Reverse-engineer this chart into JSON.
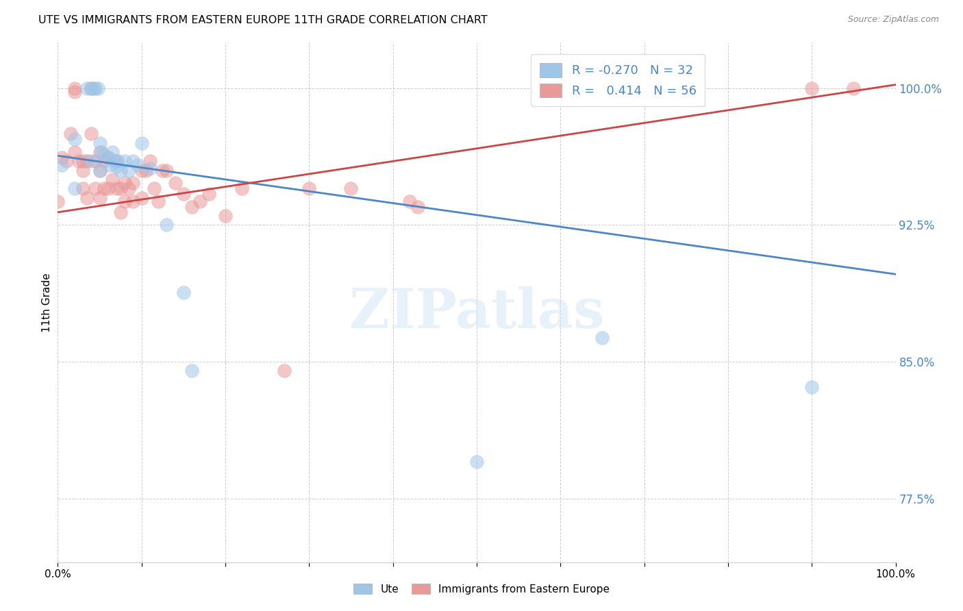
{
  "title": "UTE VS IMMIGRANTS FROM EASTERN EUROPE 11TH GRADE CORRELATION CHART",
  "source": "Source: ZipAtlas.com",
  "ylabel": "11th Grade",
  "xlim": [
    0.0,
    1.0
  ],
  "ylim": [
    0.74,
    1.025
  ],
  "ytick_positions": [
    0.775,
    0.85,
    0.925,
    1.0
  ],
  "ytick_labels": [
    "77.5%",
    "85.0%",
    "92.5%",
    "100.0%"
  ],
  "xtick_positions": [
    0.0,
    0.1,
    0.2,
    0.3,
    0.4,
    0.5,
    0.6,
    0.7,
    0.8,
    0.9,
    1.0
  ],
  "xtick_labels": [
    "0.0%",
    "",
    "",
    "",
    "",
    "",
    "",
    "",
    "",
    "",
    "100.0%"
  ],
  "blue_color": "#9fc5e8",
  "pink_color": "#ea9999",
  "blue_line_color": "#4a86c8",
  "pink_line_color": "#cc4444",
  "legend_r_blue": "-0.270",
  "legend_n_blue": "32",
  "legend_r_pink": "0.414",
  "legend_n_pink": "56",
  "watermark_text": "ZIPatlas",
  "blue_scatter_x": [
    0.005,
    0.02,
    0.035,
    0.04,
    0.043,
    0.045,
    0.048,
    0.05,
    0.052,
    0.055,
    0.06,
    0.062,
    0.065,
    0.068,
    0.07,
    0.072,
    0.075,
    0.08,
    0.085,
    0.09,
    0.095,
    0.1,
    0.11,
    0.13,
    0.15,
    0.16,
    0.02,
    0.04,
    0.05,
    0.5,
    0.65,
    0.9
  ],
  "blue_scatter_y": [
    0.958,
    0.972,
    1.0,
    1.0,
    1.0,
    1.0,
    1.0,
    0.97,
    0.965,
    0.963,
    0.962,
    0.958,
    0.965,
    0.96,
    0.957,
    0.96,
    0.955,
    0.96,
    0.955,
    0.96,
    0.958,
    0.97,
    0.956,
    0.925,
    0.888,
    0.845,
    0.945,
    0.96,
    0.955,
    0.795,
    0.863,
    0.836
  ],
  "pink_scatter_x": [
    0.0,
    0.005,
    0.01,
    0.015,
    0.02,
    0.02,
    0.02,
    0.025,
    0.03,
    0.03,
    0.03,
    0.035,
    0.035,
    0.04,
    0.04,
    0.045,
    0.045,
    0.05,
    0.05,
    0.05,
    0.055,
    0.055,
    0.06,
    0.06,
    0.065,
    0.07,
    0.07,
    0.075,
    0.075,
    0.08,
    0.08,
    0.085,
    0.09,
    0.09,
    0.1,
    0.1,
    0.105,
    0.11,
    0.115,
    0.12,
    0.125,
    0.13,
    0.14,
    0.15,
    0.16,
    0.17,
    0.18,
    0.2,
    0.22,
    0.27,
    0.3,
    0.35,
    0.42,
    0.43,
    0.9,
    0.95
  ],
  "pink_scatter_y": [
    0.938,
    0.962,
    0.96,
    0.975,
    1.0,
    0.998,
    0.965,
    0.96,
    0.96,
    0.955,
    0.945,
    0.96,
    0.94,
    1.0,
    0.975,
    0.96,
    0.945,
    0.965,
    0.955,
    0.94,
    0.96,
    0.945,
    0.962,
    0.945,
    0.95,
    0.96,
    0.945,
    0.945,
    0.932,
    0.948,
    0.938,
    0.945,
    0.948,
    0.938,
    0.955,
    0.94,
    0.955,
    0.96,
    0.945,
    0.938,
    0.955,
    0.955,
    0.948,
    0.942,
    0.935,
    0.938,
    0.942,
    0.93,
    0.945,
    0.845,
    0.945,
    0.945,
    0.938,
    0.935,
    1.0,
    1.0
  ],
  "blue_line_x0": 0.0,
  "blue_line_y0": 0.963,
  "blue_line_x1": 1.0,
  "blue_line_y1": 0.898,
  "pink_line_x0": 0.0,
  "pink_line_y0": 0.932,
  "pink_line_x1": 1.0,
  "pink_line_y1": 1.002,
  "background_color": "#ffffff",
  "grid_color": "#cccccc"
}
